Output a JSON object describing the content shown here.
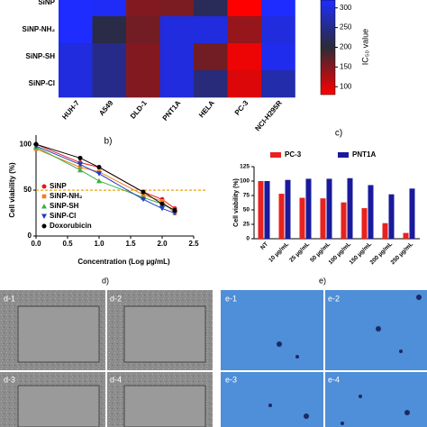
{
  "chart_data": [
    {
      "type": "heatmap",
      "categories": [
        "HUH-7",
        "A549",
        "DLD-1",
        "PNT1A",
        "HELA",
        "PC-3",
        "NCI-H295R"
      ],
      "rows": [
        "SiNP",
        "SiNP-NH₂",
        "SiNP-SH",
        "SiNP-Cl"
      ],
      "values": [
        [
          320,
          315,
          150,
          155,
          220,
          80,
          320
        ],
        [
          320,
          210,
          160,
          300,
          300,
          140,
          300
        ],
        [
          300,
          250,
          150,
          300,
          160,
          90,
          310
        ],
        [
          300,
          250,
          150,
          300,
          240,
          100,
          270
        ]
      ],
      "colorbar_label": "IC₅₀ value",
      "clim": [
        80,
        320
      ],
      "cticks": [
        100,
        150,
        200,
        250,
        300
      ],
      "colors": [
        "#ff0000",
        "#2b2b36",
        "#1e2cff"
      ]
    },
    {
      "type": "line",
      "label": "b)",
      "xlabel": "Concentration (Log µg/mL)",
      "ylabel": "Cell viability (%)",
      "x": [
        0,
        0.7,
        1.0,
        1.7,
        2.0,
        2.2
      ],
      "xlim": [
        0,
        2.5
      ],
      "xticks": [
        {
          "value": 0,
          "label": "0.0"
        },
        0.5,
        {
          "value": 1,
          "label": "1.0"
        },
        1.5,
        {
          "value": 2,
          "label": "2.0"
        },
        2.5
      ],
      "ylim": [
        0,
        110
      ],
      "yticks": [
        0,
        50,
        100
      ],
      "reference_line": {
        "value": 50,
        "color": "#e8a317"
      },
      "series": [
        {
          "name": "SiNP",
          "color": "#e41a1c",
          "marker": "circle",
          "values": [
            100,
            80,
            75,
            48,
            40,
            30
          ]
        },
        {
          "name": "SiNP-NH₂",
          "color": "#f08020",
          "marker": "square",
          "values": [
            95,
            75,
            70,
            45,
            38,
            25
          ]
        },
        {
          "name": "SiNP-SH",
          "color": "#3cb043",
          "marker": "triangle-up",
          "values": [
            97,
            72,
            60,
            42,
            35,
            28
          ]
        },
        {
          "name": "SiNP-Cl",
          "color": "#1f3fbf",
          "marker": "triangle-down",
          "values": [
            98,
            78,
            68,
            40,
            30,
            25
          ]
        },
        {
          "name": "Doxorubicin",
          "color": "#000000",
          "marker": "circle",
          "values": [
            100,
            85,
            75,
            48,
            35,
            28
          ]
        }
      ]
    },
    {
      "type": "bar",
      "label": "c)",
      "ylabel": "Cell viability (%)",
      "categories": [
        "NT",
        "10 µg/mL",
        "25 µg/mL",
        "50 µg/mL",
        "100 µg/mL",
        "150 µg/mL",
        "200 µg/mL",
        "250 µg/mL"
      ],
      "ylim": [
        0,
        125
      ],
      "yticks": [
        0,
        25,
        50,
        75,
        100,
        125
      ],
      "series": [
        {
          "name": "PC-3",
          "color": "#e8221e",
          "values": [
            100,
            78,
            71,
            70,
            63,
            53,
            27,
            10
          ]
        },
        {
          "name": "PNT1A",
          "color": "#1a1a9c",
          "values": [
            100,
            102,
            104,
            104,
            105,
            93,
            77,
            87
          ]
        }
      ]
    }
  ],
  "figure_panels": {
    "d": {
      "label": "d)",
      "tiles": [
        "d-1",
        "d-2",
        "d-3",
        "d-4"
      ]
    },
    "e": {
      "label": "e)",
      "tiles": [
        "e-1",
        "e-2",
        "e-3",
        "e-4"
      ]
    }
  }
}
